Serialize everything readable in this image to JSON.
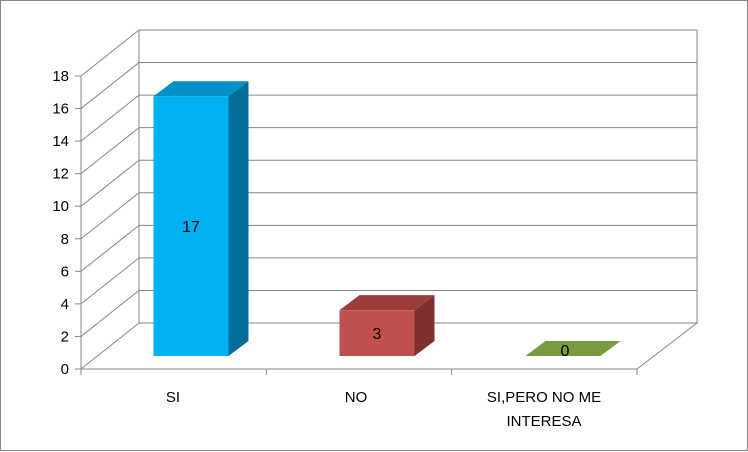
{
  "chart_data": {
    "type": "bar",
    "style": "3d-column",
    "title": "",
    "xlabel": "",
    "ylabel": "",
    "categories": [
      "SI",
      "NO",
      "SI,PERO NO ME INTERESA"
    ],
    "category_lines": [
      [
        "SI"
      ],
      [
        "NO"
      ],
      [
        "SI,PERO NO ME",
        "INTERESA"
      ]
    ],
    "values": [
      17,
      3,
      0
    ],
    "data_labels": [
      "17",
      "3",
      "0"
    ],
    "ylim": [
      0,
      18
    ],
    "yticks": [
      0,
      2,
      4,
      6,
      8,
      10,
      12,
      14,
      16,
      18
    ],
    "grid": true,
    "legend": "none",
    "colors": {
      "bars": [
        {
          "front": "#00B0F0",
          "top": "#0091C9",
          "side": "#006E99"
        },
        {
          "front": "#C0504D",
          "top": "#9A3C3A",
          "side": "#7F2F2D"
        },
        {
          "front": "#9BBB59",
          "top": "#7A9A3F",
          "side": "#5F7A30"
        }
      ],
      "grid": "#868686",
      "frame": "#868686"
    }
  }
}
